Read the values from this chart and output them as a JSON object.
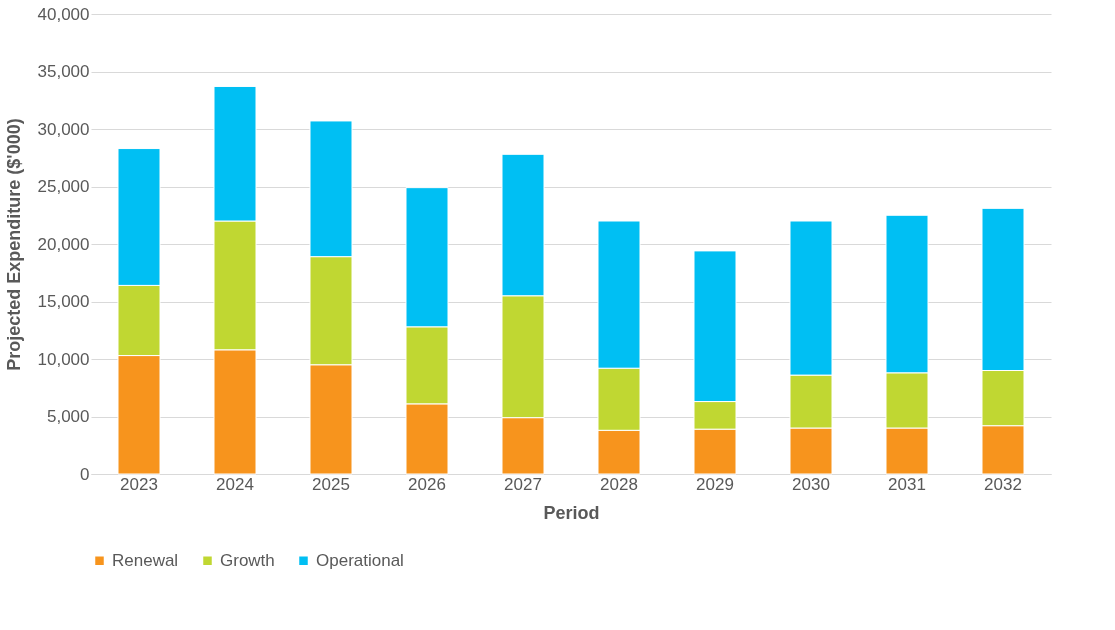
{
  "chart_data": {
    "type": "bar",
    "stacked": true,
    "xlabel": "Period",
    "ylabel": "Projected Expenditure ($'000)",
    "categories": [
      "2023",
      "2024",
      "2025",
      "2026",
      "2027",
      "2028",
      "2029",
      "2030",
      "2031",
      "2032"
    ],
    "series": [
      {
        "name": "Renewal",
        "color": "#f7941d",
        "values": [
          10300,
          10800,
          9500,
          6100,
          4900,
          3800,
          3900,
          4000,
          4000,
          4200
        ]
      },
      {
        "name": "Growth",
        "color": "#c0d732",
        "values": [
          6100,
          11200,
          9400,
          6700,
          10600,
          5400,
          2400,
          4600,
          4800,
          4800
        ]
      },
      {
        "name": "Operational",
        "color": "#00bff3",
        "values": [
          11900,
          11700,
          11800,
          12100,
          12300,
          12800,
          13100,
          13400,
          13700,
          14100
        ]
      }
    ],
    "ylim": [
      0,
      40000
    ],
    "yticks": [
      0,
      {
        "value": 5000,
        "label": "5,000"
      },
      {
        "value": 10000,
        "label": "10,000"
      },
      {
        "value": 15000,
        "label": "15,000"
      },
      {
        "value": 20000,
        "label": "20,000"
      },
      {
        "value": 25000,
        "label": "25,000"
      },
      {
        "value": 30000,
        "label": "30,000"
      },
      {
        "value": 35000,
        "label": "35,000"
      },
      {
        "value": 40000,
        "label": "40,000"
      }
    ],
    "grid": "y",
    "legend": "bottom"
  }
}
